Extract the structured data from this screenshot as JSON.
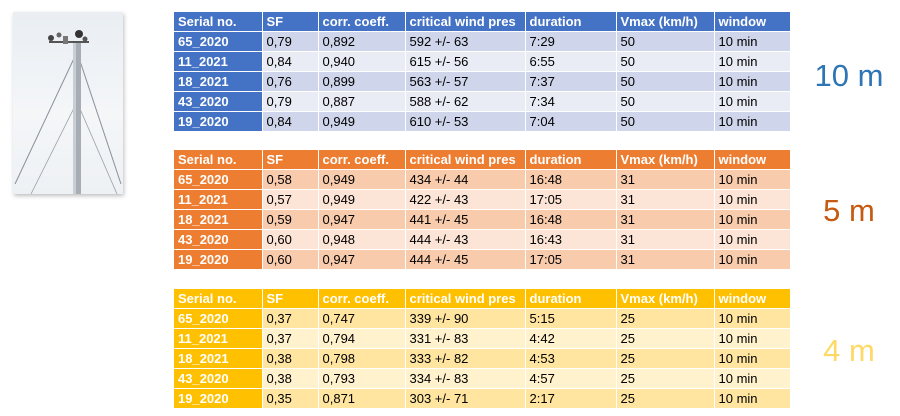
{
  "headers": [
    "Serial no.",
    "SF",
    "corr. coeff.",
    "critical wind pres",
    "duration",
    "Vmax (km/h)",
    "window"
  ],
  "groups": [
    {
      "label": "10 m",
      "color": "#4472c4",
      "rows": [
        [
          "65_2020",
          "0,79",
          "0,892",
          "592 +/- 63",
          "7:29",
          "50",
          "10 min"
        ],
        [
          "11_2021",
          "0,84",
          "0,940",
          "615 +/- 56",
          "6:55",
          "50",
          "10 min"
        ],
        [
          "18_2021",
          "0,76",
          "0,899",
          "563 +/- 57",
          "7:37",
          "50",
          "10 min"
        ],
        [
          "43_2020",
          "0,79",
          "0,887",
          "588 +/- 62",
          "7:34",
          "50",
          "10 min"
        ],
        [
          "19_2020",
          "0,84",
          "0,949",
          "610 +/- 53",
          "7:04",
          "50",
          "10 min"
        ]
      ]
    },
    {
      "label": "5 m",
      "color": "#ed7d31",
      "rows": [
        [
          "65_2020",
          "0,58",
          "0,949",
          "434 +/- 44",
          "16:48",
          "31",
          "10 min"
        ],
        [
          "11_2021",
          "0,57",
          "0,949",
          "422 +/- 43",
          "17:05",
          "31",
          "10 min"
        ],
        [
          "18_2021",
          "0,59",
          "0,947",
          "441 +/- 45",
          "16:48",
          "31",
          "10 min"
        ],
        [
          "43_2020",
          "0,60",
          "0,948",
          "444 +/- 43",
          "16:43",
          "31",
          "10 min"
        ],
        [
          "19_2020",
          "0,60",
          "0,947",
          "444 +/- 45",
          "17:05",
          "31",
          "10 min"
        ]
      ]
    },
    {
      "label": "4 m",
      "color": "#ffc000",
      "rows": [
        [
          "65_2020",
          "0,37",
          "0,747",
          "339 +/- 90",
          "5:15",
          "25",
          "10 min"
        ],
        [
          "11_2021",
          "0,37",
          "0,794",
          "331 +/- 83",
          "4:42",
          "25",
          "10 min"
        ],
        [
          "18_2021",
          "0,38",
          "0,798",
          "333 +/- 82",
          "4:53",
          "25",
          "10 min"
        ],
        [
          "43_2020",
          "0,38",
          "0,793",
          "334 +/- 83",
          "4:57",
          "25",
          "10 min"
        ],
        [
          "19_2020",
          "0,35",
          "0,871",
          "303 +/- 71",
          "2:17",
          "25",
          "10 min"
        ]
      ]
    }
  ]
}
